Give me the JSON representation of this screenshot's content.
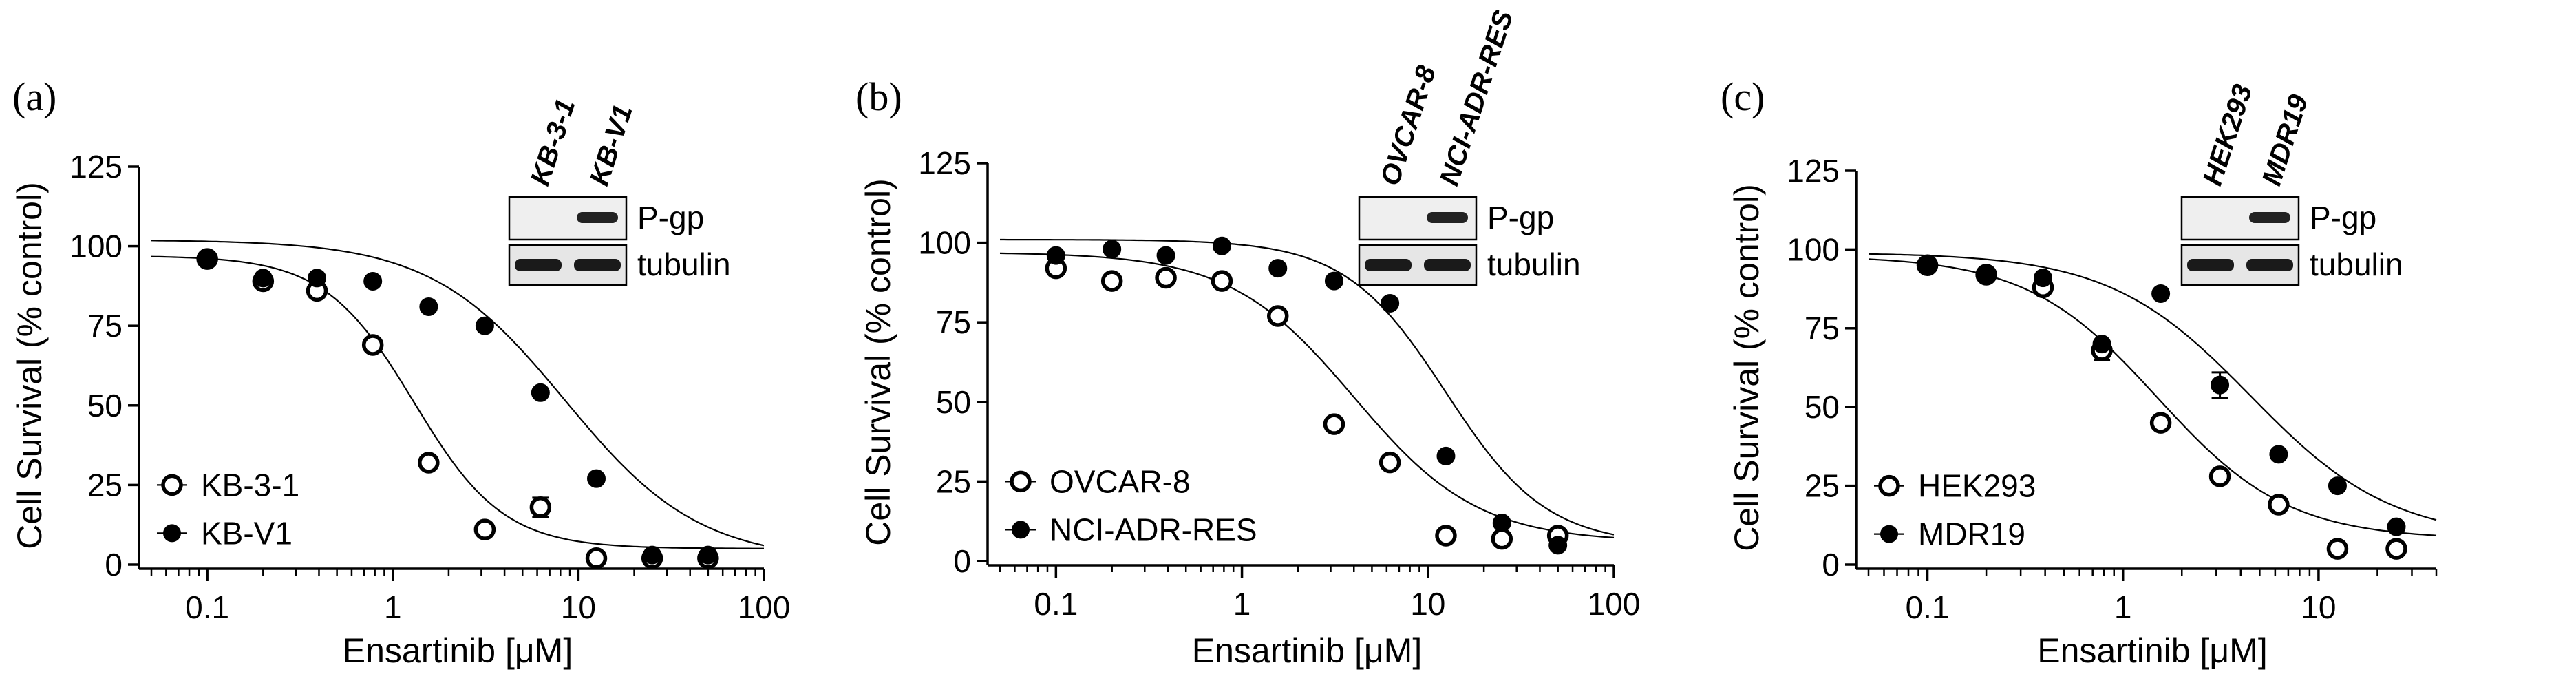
{
  "chart_data": [
    {
      "panel_label": "(a)",
      "type": "scatter",
      "xlabel": "Ensartinib [μM]",
      "ylabel": "Cell Survival (% control)",
      "xscale": "log",
      "xlim": [
        0.05,
        100
      ],
      "ylim": [
        0,
        125
      ],
      "xticks": [
        0.1,
        1,
        10,
        100
      ],
      "xtick_labels": [
        "0.1",
        "1",
        "10",
        "100"
      ],
      "yticks": [
        0,
        25,
        50,
        75,
        100,
        125
      ],
      "ytick_labels": [
        "0",
        "25",
        "50",
        "75",
        "100",
        "125"
      ],
      "grid": false,
      "legend_position": "bottom-left",
      "series": [
        {
          "name": "KB-3-1",
          "marker": "open-circle",
          "x": [
            0.1,
            0.2,
            0.39,
            0.78,
            1.56,
            3.13,
            6.25,
            12.5,
            25,
            50
          ],
          "y": [
            96,
            89,
            86,
            69,
            32,
            11,
            18,
            2,
            2,
            2
          ],
          "error": [
            0,
            0,
            2,
            0,
            0,
            0,
            3,
            0,
            0,
            0
          ],
          "fit": {
            "top": 97,
            "bottom": 5,
            "ic50": 1.3,
            "hill": 1.8
          }
        },
        {
          "name": "KB-V1",
          "marker": "filled-circle",
          "x": [
            0.1,
            0.2,
            0.39,
            0.78,
            1.56,
            3.13,
            6.25,
            12.5,
            25,
            50
          ],
          "y": [
            96,
            90,
            90,
            89,
            81,
            75,
            54,
            27,
            3,
            3
          ],
          "error": [
            0,
            0,
            0,
            0,
            0,
            0,
            0,
            0,
            0,
            0
          ],
          "fit": {
            "top": 102,
            "bottom": 1,
            "ic50": 8.5,
            "hill": 1.2
          }
        }
      ],
      "inset_blot": {
        "lanes": [
          "KB-3-1",
          "KB-V1"
        ],
        "rows": [
          "P-gp",
          "tubulin"
        ],
        "pgp_present": [
          false,
          true
        ]
      }
    },
    {
      "panel_label": "(b)",
      "type": "scatter",
      "xlabel": "Ensartinib [μM]",
      "ylabel": "Cell Survival (% control)",
      "xscale": "log",
      "xlim": [
        0.05,
        100
      ],
      "ylim": [
        0,
        125
      ],
      "xticks": [
        0.1,
        1,
        10,
        100
      ],
      "xtick_labels": [
        "0.1",
        "1",
        "10",
        "100"
      ],
      "yticks": [
        0,
        25,
        50,
        75,
        100,
        125
      ],
      "ytick_labels": [
        "0",
        "25",
        "50",
        "75",
        "100",
        "125"
      ],
      "grid": false,
      "legend_position": "bottom-left",
      "series": [
        {
          "name": "OVCAR-8",
          "marker": "open-circle",
          "x": [
            0.1,
            0.2,
            0.39,
            0.78,
            1.56,
            3.13,
            6.25,
            12.5,
            25,
            50
          ],
          "y": [
            92,
            88,
            89,
            88,
            77,
            43,
            31,
            8,
            7,
            8
          ],
          "error": [
            0,
            0,
            0,
            0,
            0,
            0,
            0,
            0,
            0,
            0
          ],
          "fit": {
            "top": 97,
            "bottom": 6,
            "ic50": 4.0,
            "hill": 1.3
          }
        },
        {
          "name": "NCI-ADR-RES",
          "marker": "filled-circle",
          "x": [
            0.1,
            0.2,
            0.39,
            0.78,
            1.56,
            3.13,
            6.25,
            12.5,
            25,
            50
          ],
          "y": [
            96,
            98,
            96,
            99,
            92,
            88,
            81,
            33,
            12,
            5
          ],
          "error": [
            0,
            0,
            0,
            0,
            0,
            0,
            0,
            0,
            0,
            0
          ],
          "fit": {
            "top": 101,
            "bottom": 5,
            "ic50": 12.5,
            "hill": 1.6
          }
        }
      ],
      "inset_blot": {
        "lanes": [
          "OVCAR-8",
          "NCI-ADR-RES"
        ],
        "rows": [
          "P-gp",
          "tubulin"
        ],
        "pgp_present": [
          false,
          true
        ]
      }
    },
    {
      "panel_label": "(c)",
      "type": "scatter",
      "xlabel": "Ensartinib [μM]",
      "ylabel": "Cell Survival (% control)",
      "xscale": "log",
      "xlim": [
        0.05,
        40
      ],
      "ylim": [
        0,
        125
      ],
      "xticks": [
        0.1,
        1,
        10
      ],
      "xtick_labels": [
        "0.1",
        "1",
        "10"
      ],
      "yticks": [
        0,
        25,
        50,
        75,
        100,
        125
      ],
      "ytick_labels": [
        "0",
        "25",
        "50",
        "75",
        "100",
        "125"
      ],
      "grid": false,
      "legend_position": "bottom-left",
      "series": [
        {
          "name": "HEK293",
          "marker": "open-circle",
          "x": [
            0.1,
            0.2,
            0.39,
            0.78,
            1.56,
            3.13,
            6.25,
            12.5,
            25
          ],
          "y": [
            95,
            92,
            88,
            68,
            45,
            28,
            19,
            5,
            5
          ],
          "error": [
            0,
            0,
            0,
            3,
            0,
            0,
            0,
            0,
            0
          ],
          "fit": {
            "top": 98,
            "bottom": 8,
            "ic50": 1.5,
            "hill": 1.3
          }
        },
        {
          "name": "MDR19",
          "marker": "filled-circle",
          "x": [
            0.1,
            0.2,
            0.39,
            0.78,
            1.56,
            3.13,
            6.25,
            12.5,
            25
          ],
          "y": [
            95,
            92,
            91,
            70,
            86,
            57,
            35,
            25,
            12
          ],
          "error": [
            0,
            0,
            0,
            0,
            0,
            4,
            0,
            0,
            0
          ],
          "fit": {
            "top": 99,
            "bottom": 8,
            "ic50": 4.5,
            "hill": 1.2
          }
        }
      ],
      "inset_blot": {
        "lanes": [
          "HEK293",
          "MDR19"
        ],
        "rows": [
          "P-gp",
          "tubulin"
        ],
        "pgp_present": [
          false,
          true
        ]
      }
    }
  ]
}
